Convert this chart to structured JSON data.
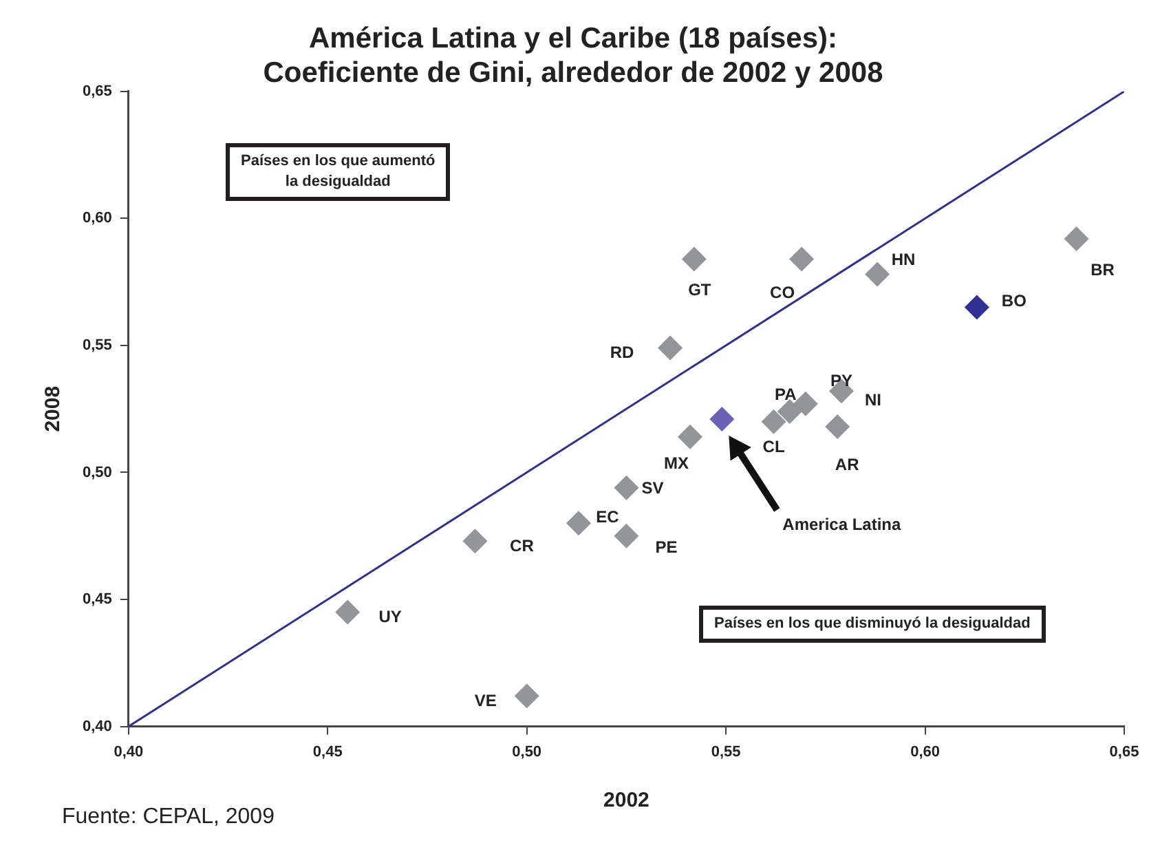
{
  "chart_data": {
    "type": "scatter",
    "title": "América Latina y el Caribe (18 países):\nCoeficiente de Gini, alrededor de 2002 y 2008",
    "xlabel": "2002",
    "ylabel": "2008",
    "series": [
      {
        "x": [
          0.455,
          0.487,
          0.5,
          0.513,
          0.525,
          0.525,
          0.536,
          0.541,
          0.549,
          0.542,
          0.569,
          0.588,
          0.562,
          0.566,
          0.57,
          0.579,
          0.578,
          0.613,
          0.638
        ],
        "values": [
          0.445,
          0.473,
          0.412,
          0.48,
          0.494,
          0.475,
          0.549,
          0.514,
          0.521,
          0.584,
          0.584,
          0.578,
          0.52,
          0.524,
          0.527,
          0.532,
          0.518,
          0.565,
          0.592
        ],
        "colors": [
          "#939598",
          "#939598",
          "#939598",
          "#939598",
          "#939598",
          "#939598",
          "#939598",
          "#939598",
          "#6a62b5",
          "#939598",
          "#939598",
          "#939598",
          "#939598",
          "#939598",
          "#939598",
          "#939598",
          "#939598",
          "#2e3192",
          "#939598"
        ],
        "marker": "diamond"
      },
      {
        "type": "line",
        "x": [
          0.4,
          0.65
        ],
        "values": [
          0.4,
          0.65
        ],
        "color": "#2e3192",
        "marker": "none"
      }
    ],
    "xlim": [
      0.4,
      0.65
    ],
    "ylim": [
      0.4,
      0.65
    ],
    "xticks": [
      {
        "value": 0.4,
        "label": "0,40"
      },
      {
        "value": 0.45,
        "label": "0,45"
      },
      {
        "value": 0.5,
        "label": "0,50"
      },
      {
        "value": 0.55,
        "label": "0,55"
      },
      {
        "value": 0.6,
        "label": "0,60"
      },
      {
        "value": 0.65,
        "label": "0,65"
      }
    ],
    "yticks": [
      {
        "value": 0.4,
        "label": "0,40"
      },
      {
        "value": 0.45,
        "label": "0,45"
      },
      {
        "value": 0.5,
        "label": "0,50"
      },
      {
        "value": 0.55,
        "label": "0,55"
      },
      {
        "value": 0.6,
        "label": "0,60"
      },
      {
        "value": 0.65,
        "label": "0,65"
      }
    ],
    "grid": false,
    "legend": false,
    "annotations": [
      {
        "text": "UY",
        "x": 0.455,
        "y": 0.445
      },
      {
        "text": "CR",
        "x": 0.487,
        "y": 0.473
      },
      {
        "text": "VE",
        "x": 0.5,
        "y": 0.412
      },
      {
        "text": "EC",
        "x": 0.513,
        "y": 0.48
      },
      {
        "text": "SV",
        "x": 0.525,
        "y": 0.494
      },
      {
        "text": "PE",
        "x": 0.525,
        "y": 0.475
      },
      {
        "text": "RD",
        "x": 0.536,
        "y": 0.549
      },
      {
        "text": "MX",
        "x": 0.541,
        "y": 0.514
      },
      {
        "text": "GT",
        "x": 0.542,
        "y": 0.584
      },
      {
        "text": "CO",
        "x": 0.569,
        "y": 0.584
      },
      {
        "text": "HN",
        "x": 0.588,
        "y": 0.578
      },
      {
        "text": "CL",
        "x": 0.562,
        "y": 0.52
      },
      {
        "text": "PA",
        "x": 0.566,
        "y": 0.524
      },
      {
        "text": "PY",
        "x": 0.57,
        "y": 0.527
      },
      {
        "text": "NI",
        "x": 0.579,
        "y": 0.532
      },
      {
        "text": "AR",
        "x": 0.578,
        "y": 0.518
      },
      {
        "text": "BO",
        "x": 0.613,
        "y": 0.565
      },
      {
        "text": "BR",
        "x": 0.638,
        "y": 0.592
      },
      "America Latina",
      "Países en los que aumentó\nla desigualdad",
      "Países en los que disminuyó la desigualdad",
      "Fuente: CEPAL, 2009"
    ]
  }
}
